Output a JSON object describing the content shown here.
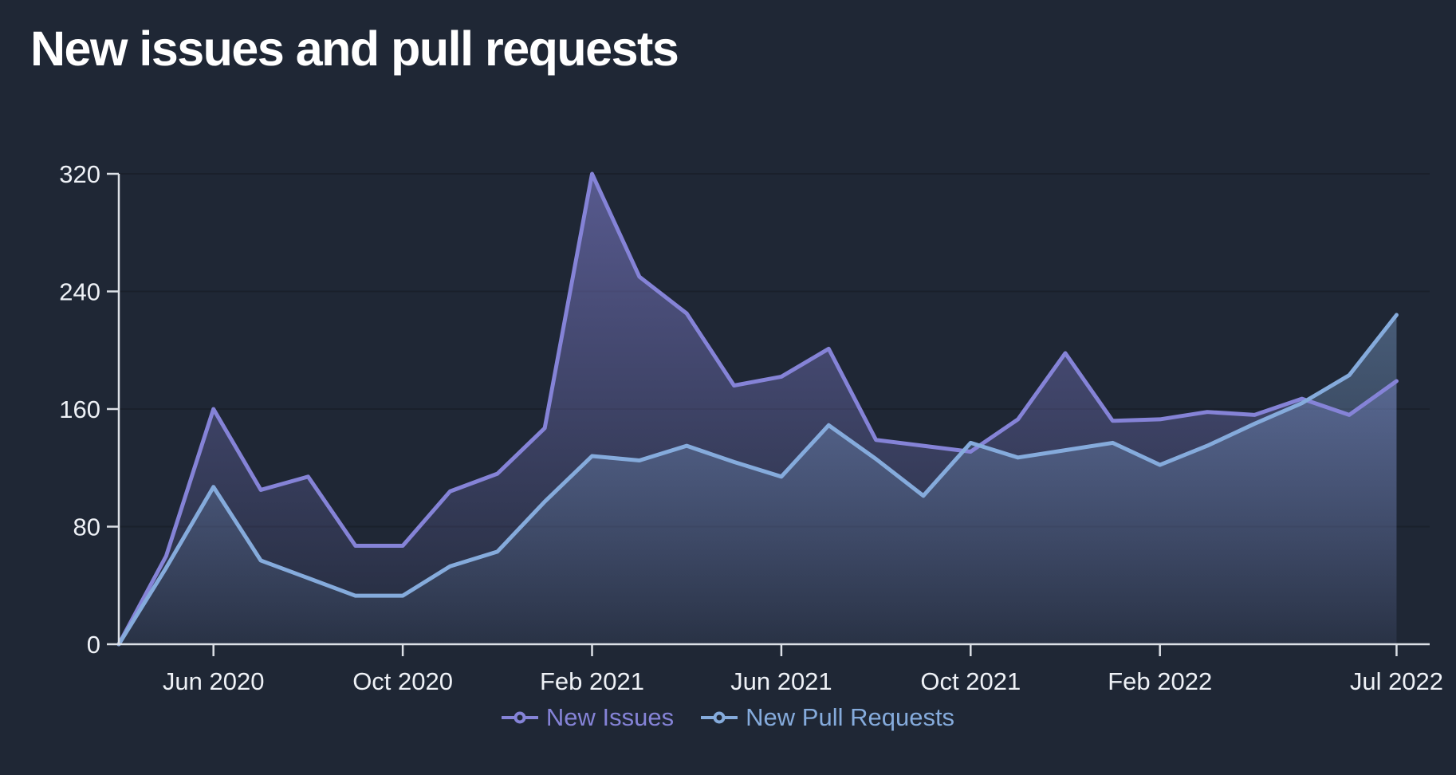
{
  "title": "New issues and pull requests",
  "colors": {
    "background": "#1f2735",
    "axis_line": "#dce0e6",
    "grid_line": "#1a202b",
    "label_text": "#eef1f6",
    "issues": "#8583d7",
    "pull_requests": "#85abdc"
  },
  "legend": {
    "items": [
      {
        "label": "New Issues"
      },
      {
        "label": "New Pull Requests"
      }
    ]
  },
  "chart_data": {
    "type": "area",
    "title": "New issues and pull requests",
    "xlabel": "",
    "ylabel": "",
    "x": [
      "Apr 2020",
      "May 2020",
      "Jun 2020",
      "Jul 2020",
      "Aug 2020",
      "Sep 2020",
      "Oct 2020",
      "Nov 2020",
      "Dec 2020",
      "Jan 2021",
      "Feb 2021",
      "Mar 2021",
      "Apr 2021",
      "May 2021",
      "Jun 2021",
      "Jul 2021",
      "Aug 2021",
      "Sep 2021",
      "Oct 2021",
      "Nov 2021",
      "Dec 2021",
      "Jan 2022",
      "Feb 2022",
      "Mar 2022",
      "Apr 2022",
      "May 2022",
      "Jun 2022",
      "Jul 2022"
    ],
    "x_tick_labels": [
      "Jun 2020",
      "Oct 2020",
      "Feb 2021",
      "Jun 2021",
      "Oct 2021",
      "Feb 2022",
      "Jul 2022"
    ],
    "x_tick_indices": [
      2,
      6,
      10,
      14,
      18,
      22,
      27
    ],
    "y_ticks": [
      0,
      80,
      160,
      240,
      320
    ],
    "ylim": [
      0,
      320
    ],
    "grid": "horizontal",
    "legend_position": "bottom",
    "series": [
      {
        "name": "New Issues",
        "color": "#8583d7",
        "values": [
          0,
          60,
          160,
          105,
          114,
          67,
          67,
          104,
          116,
          147,
          320,
          250,
          225,
          176,
          182,
          201,
          139,
          135,
          131,
          153,
          198,
          152,
          153,
          158,
          156,
          167,
          156,
          179
        ]
      },
      {
        "name": "New Pull Requests",
        "color": "#85abdc",
        "values": [
          0,
          52,
          107,
          57,
          45,
          33,
          33,
          53,
          63,
          97,
          128,
          125,
          135,
          124,
          114,
          149,
          126,
          101,
          137,
          127,
          132,
          137,
          122,
          135,
          150,
          164,
          183,
          224
        ]
      }
    ]
  }
}
